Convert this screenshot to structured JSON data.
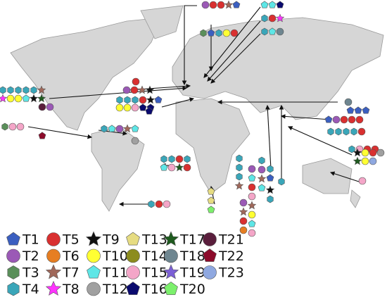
{
  "legend": {
    "items": [
      {
        "label": "T1",
        "shape": "pentagon",
        "color": "#3b5fc0"
      },
      {
        "label": "T2",
        "shape": "circle",
        "color": "#9b59b6"
      },
      {
        "label": "T3",
        "shape": "hexagon",
        "color": "#5a8f5a"
      },
      {
        "label": "T4",
        "shape": "hexagon",
        "color": "#3aa6b9"
      },
      {
        "label": "T5",
        "shape": "circle",
        "color": "#d93030"
      },
      {
        "label": "T6",
        "shape": "circle",
        "color": "#e67e22"
      },
      {
        "label": "T7",
        "shape": "star",
        "color": "#a0685a"
      },
      {
        "label": "T8",
        "shape": "star",
        "color": "#ff33ff"
      },
      {
        "label": "T9",
        "shape": "star",
        "color": "#111111"
      },
      {
        "label": "T10",
        "shape": "circle",
        "color": "#ffff33"
      },
      {
        "label": "T11",
        "shape": "pentagon",
        "color": "#5ee6e6"
      },
      {
        "label": "T12",
        "shape": "circle",
        "color": "#a0a0a0"
      },
      {
        "label": "T13",
        "shape": "pentagon",
        "color": "#e6dc82"
      },
      {
        "label": "T14",
        "shape": "circle",
        "color": "#8c8c1e"
      },
      {
        "label": "T15",
        "shape": "circle",
        "color": "#f4a6c8"
      },
      {
        "label": "T16",
        "shape": "pentagon",
        "color": "#0a0a6e"
      },
      {
        "label": "T17",
        "shape": "star",
        "color": "#1e5a1e"
      },
      {
        "label": "T18",
        "shape": "circle",
        "color": "#6e8690"
      },
      {
        "label": "T19",
        "shape": "star",
        "color": "#7b5fd6"
      },
      {
        "label": "T20",
        "shape": "pentagon",
        "color": "#7cf06c"
      },
      {
        "label": "T21",
        "shape": "circle",
        "color": "#5a1e3c"
      },
      {
        "label": "T22",
        "shape": "pentagon",
        "color": "#8c0a2a"
      },
      {
        "label": "T23",
        "shape": "circle",
        "color": "#8fa8e0"
      }
    ]
  }
}
